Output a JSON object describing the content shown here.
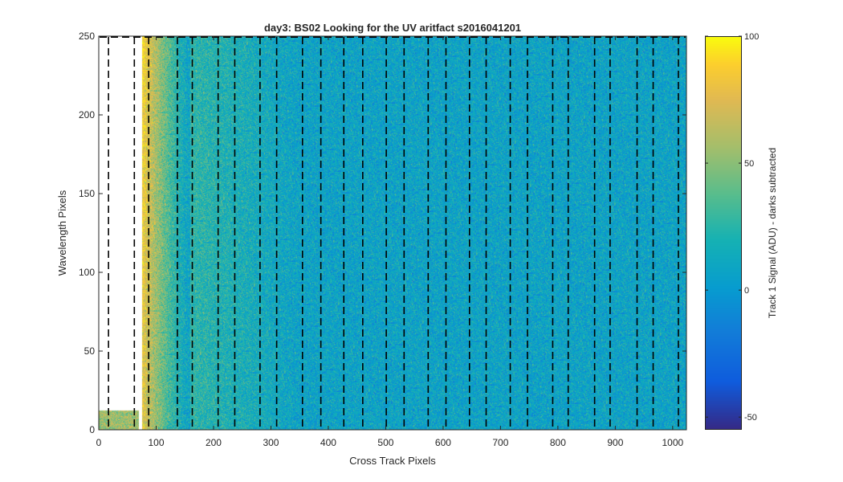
{
  "chart_data": {
    "type": "heatmap",
    "title": "day3: BS02  Looking for the UV aritfact  s2016041201",
    "xlabel": "Cross Track Pixels",
    "ylabel": "Wavelength Pixels",
    "xlim": [
      0,
      1024
    ],
    "ylim": [
      0,
      250
    ],
    "xticks": [
      0,
      100,
      200,
      300,
      400,
      500,
      600,
      700,
      800,
      900,
      1000
    ],
    "yticks": [
      0,
      50,
      100,
      150,
      200,
      250
    ],
    "colorbar": {
      "label": "Track 1 Signal (ADU) - darks subtracted",
      "colormap": "parula",
      "clim": [
        -55,
        100
      ],
      "ticks": [
        -50,
        0,
        50,
        100
      ]
    },
    "valid_data_region": [
      {
        "x_start": 0,
        "x_end": 70,
        "y_start": 0,
        "y_end": 12
      },
      {
        "x_start": 75,
        "x_end": 1024,
        "y_start": 0,
        "y_end": 250
      }
    ],
    "bright_edge_x": [
      75,
      160
    ],
    "dashed_lines_x": [
      17,
      62,
      87,
      137,
      163,
      208,
      237,
      281,
      310,
      355,
      387,
      427,
      460,
      501,
      532,
      574,
      605,
      646,
      675,
      717,
      747,
      791,
      818,
      864,
      891,
      938,
      966,
      1010
    ]
  },
  "colors": {
    "background_value": "#13a2c7",
    "axis": "#262626",
    "dashed": "#000000"
  }
}
